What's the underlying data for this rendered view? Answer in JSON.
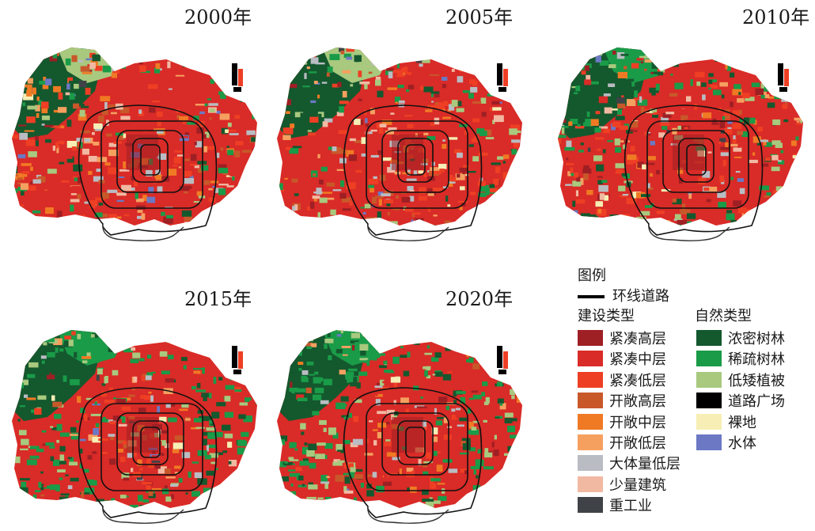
{
  "panels": [
    {
      "year": "2000年",
      "green": 0.2,
      "seed": 11
    },
    {
      "year": "2005年",
      "green": 0.22,
      "seed": 23
    },
    {
      "year": "2010年",
      "green": 0.36,
      "seed": 37
    },
    {
      "year": "2015年",
      "green": 0.52,
      "seed": 41
    },
    {
      "year": "2020年",
      "green": 0.55,
      "seed": 59
    }
  ],
  "legend": {
    "title": "图例",
    "road_label": "环线道路",
    "construction_heading": "建设类型",
    "natural_heading": "自然类型",
    "construction": [
      {
        "label": "紧凑高层",
        "color": "#9e1f24"
      },
      {
        "label": "紧凑中层",
        "color": "#d92b27"
      },
      {
        "label": "紧凑低层",
        "color": "#ee3f24"
      },
      {
        "label": "开敞高层",
        "color": "#c8582a"
      },
      {
        "label": "开敞中层",
        "color": "#f07a24"
      },
      {
        "label": "开敞低层",
        "color": "#f6a060"
      },
      {
        "label": "大体量低层",
        "color": "#b9bcc2"
      },
      {
        "label": "少量建筑",
        "color": "#f2b9a2"
      },
      {
        "label": "重工业",
        "color": "#3f4347"
      }
    ],
    "natural": [
      {
        "label": "浓密树林",
        "color": "#14582e"
      },
      {
        "label": "稀疏树林",
        "color": "#1a9b48"
      },
      {
        "label": "低矮植被",
        "color": "#a8c97e"
      },
      {
        "label": "道路广场",
        "color": "#000000"
      },
      {
        "label": "裸地",
        "color": "#f6eeb4"
      },
      {
        "label": "水体",
        "color": "#6c78c4"
      }
    ]
  }
}
